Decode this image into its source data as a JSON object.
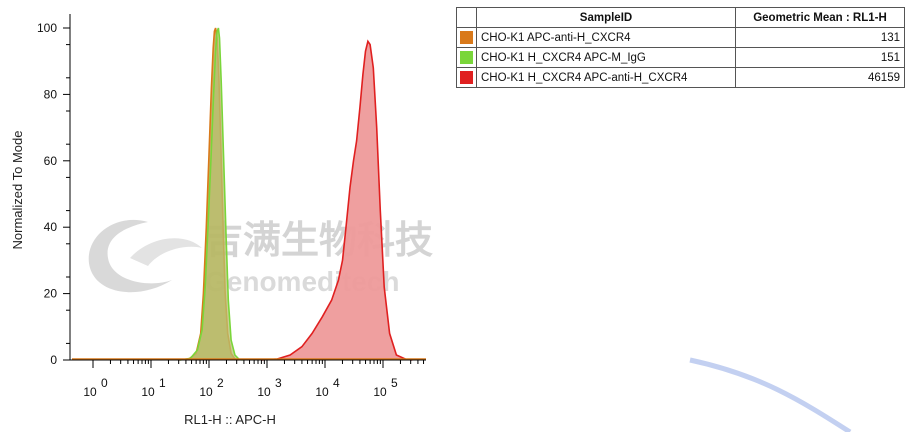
{
  "chart_data": {
    "type": "histogram",
    "xlabel": "RL1-H :: APC-H",
    "ylabel": "Normalized To Mode",
    "x_scale": "log",
    "xlim": [
      1,
      1000000
    ],
    "ylim": [
      0,
      100
    ],
    "y_ticks": [
      "0",
      "20",
      "40",
      "60",
      "80",
      "100"
    ],
    "x_ticks": [
      {
        "base": "10",
        "exp": "0"
      },
      {
        "base": "10",
        "exp": "1"
      },
      {
        "base": "10",
        "exp": "2"
      },
      {
        "base": "10",
        "exp": "3"
      },
      {
        "base": "10",
        "exp": "4"
      },
      {
        "base": "10",
        "exp": "5"
      }
    ],
    "series": [
      {
        "name": "CHO-K1 APC-anti-H_CXCR4",
        "color": "#d9791a",
        "fill": "#b59a3c",
        "points": [
          [
            30,
            0
          ],
          [
            45,
            0.3
          ],
          [
            60,
            2
          ],
          [
            72,
            8
          ],
          [
            80,
            20
          ],
          [
            90,
            40
          ],
          [
            100,
            62
          ],
          [
            110,
            82
          ],
          [
            118,
            94
          ],
          [
            124,
            99
          ],
          [
            130,
            100
          ],
          [
            138,
            97
          ],
          [
            148,
            85
          ],
          [
            160,
            65
          ],
          [
            175,
            40
          ],
          [
            190,
            20
          ],
          [
            210,
            8
          ],
          [
            240,
            2
          ],
          [
            280,
            0.3
          ],
          [
            320,
            0
          ]
        ]
      },
      {
        "name": "CHO-K1 H_CXCR4 APC-M_IgG",
        "color": "#7ad63a",
        "fill": "#b8c070",
        "points": [
          [
            32,
            0
          ],
          [
            48,
            0.5
          ],
          [
            63,
            3
          ],
          [
            76,
            9
          ],
          [
            86,
            22
          ],
          [
            96,
            40
          ],
          [
            108,
            60
          ],
          [
            120,
            80
          ],
          [
            130,
            93
          ],
          [
            138,
            99
          ],
          [
            145,
            100
          ],
          [
            152,
            97
          ],
          [
            162,
            84
          ],
          [
            178,
            62
          ],
          [
            196,
            38
          ],
          [
            215,
            18
          ],
          [
            240,
            6
          ],
          [
            280,
            1.5
          ],
          [
            330,
            0.2
          ],
          [
            380,
            0
          ]
        ]
      },
      {
        "name": "CHO-K1 H_CXCR4 APC-anti-H_CXCR4",
        "color": "#e02020",
        "fill": "#ee9a9a",
        "points": [
          [
            800,
            0
          ],
          [
            1500,
            0.3
          ],
          [
            2500,
            1.5
          ],
          [
            4000,
            4
          ],
          [
            6000,
            8
          ],
          [
            9000,
            13
          ],
          [
            13000,
            18
          ],
          [
            17000,
            24
          ],
          [
            20000,
            30
          ],
          [
            23000,
            40
          ],
          [
            27000,
            52
          ],
          [
            31000,
            60
          ],
          [
            35000,
            66
          ],
          [
            40000,
            76
          ],
          [
            45000,
            86
          ],
          [
            50000,
            93
          ],
          [
            55000,
            96
          ],
          [
            60000,
            95
          ],
          [
            68000,
            88
          ],
          [
            78000,
            70
          ],
          [
            90000,
            45
          ],
          [
            105000,
            22
          ],
          [
            130000,
            8
          ],
          [
            170000,
            1.5
          ],
          [
            250000,
            0.2
          ],
          [
            320000,
            0
          ]
        ]
      }
    ]
  },
  "watermark": {
    "chinese": "吉满生物科技",
    "english": "Genomeditech"
  },
  "table": {
    "headers": [
      "",
      "SampleID",
      "Geometric Mean : RL1-H"
    ],
    "rows": [
      {
        "color": "#d9791a",
        "sample": "CHO-K1 APC-anti-H_CXCR4",
        "value": "131"
      },
      {
        "color": "#7ad63a",
        "sample": "CHO-K1 H_CXCR4 APC-M_IgG",
        "value": "151"
      },
      {
        "color": "#e02020",
        "sample": "CHO-K1 H_CXCR4 APC-anti-H_CXCR4",
        "value": "46159"
      }
    ]
  }
}
